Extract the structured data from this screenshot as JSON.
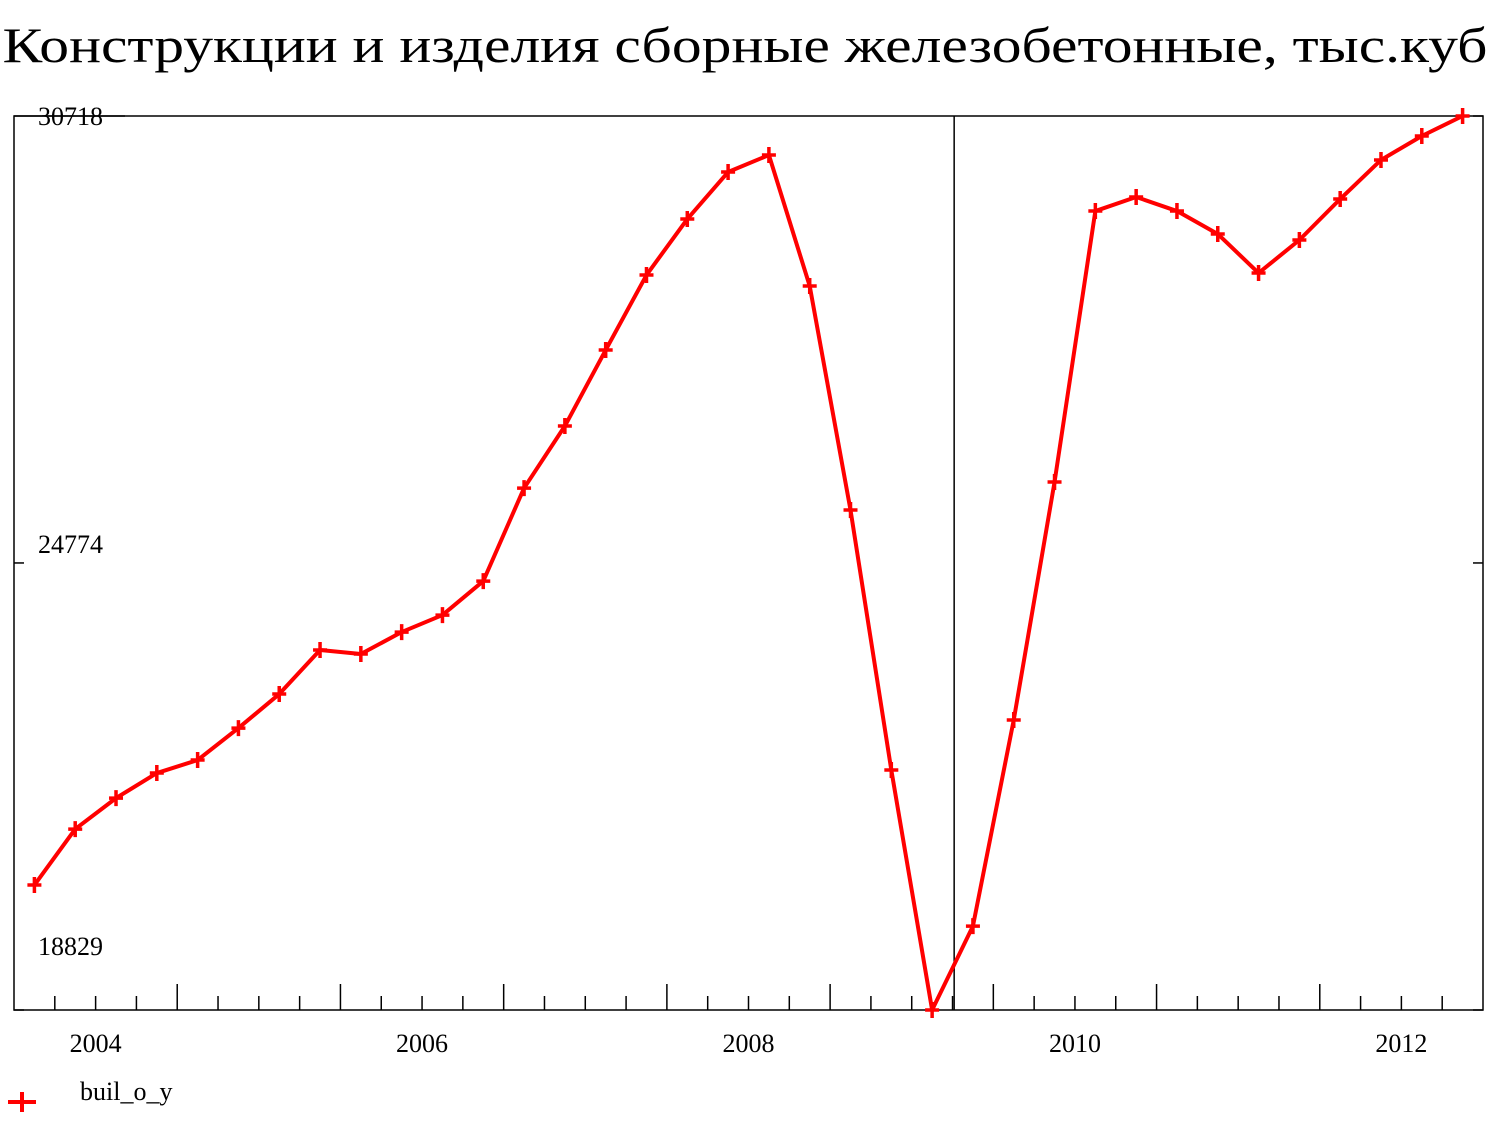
{
  "chart_data": {
    "type": "line",
    "title": "Конструкции и изделия сборные железобетонные, тыс.куб",
    "x": [
      2004.125,
      2004.375,
      2004.625,
      2004.875,
      2005.125,
      2005.375,
      2005.625,
      2005.875,
      2006.125,
      2006.375,
      2006.625,
      2006.875,
      2007.125,
      2007.375,
      2007.625,
      2007.875,
      2008.125,
      2008.375,
      2008.625,
      2008.875,
      2009.125,
      2009.375,
      2009.625,
      2009.875,
      2010.125,
      2010.375,
      2010.625,
      2010.875,
      2011.125,
      2011.375,
      2011.625,
      2011.875,
      2012.125,
      2012.375,
      2012.625,
      2012.875
    ],
    "series": [
      {
        "name": "buil_o_y",
        "color": "#ff0000",
        "values": [
          20491,
          21235,
          21647,
          21980,
          22153,
          22578,
          23031,
          23616,
          23563,
          23855,
          24081,
          24533,
          25770,
          26595,
          27606,
          28603,
          29348,
          29973,
          30199,
          28457,
          25478,
          22020,
          18829,
          19945,
          22685,
          25850,
          29454,
          29641,
          29454,
          29149,
          28630,
          29069,
          29614,
          30133,
          30452,
          30718
        ]
      }
    ],
    "xlim": [
      2004,
      2013
    ],
    "xticks": [
      {
        "value": 2004.5,
        "label": "2004"
      },
      {
        "value": 2006.5,
        "label": "2006"
      },
      {
        "value": 2008.5,
        "label": "2008"
      },
      {
        "value": 2010.5,
        "label": "2010"
      },
      {
        "value": 2012.5,
        "label": "2012"
      }
    ],
    "ylim": [
      18829,
      30718
    ],
    "yticks": [
      18829,
      24774,
      30718
    ],
    "vline": 2009.76,
    "legend": "bottom-left"
  }
}
